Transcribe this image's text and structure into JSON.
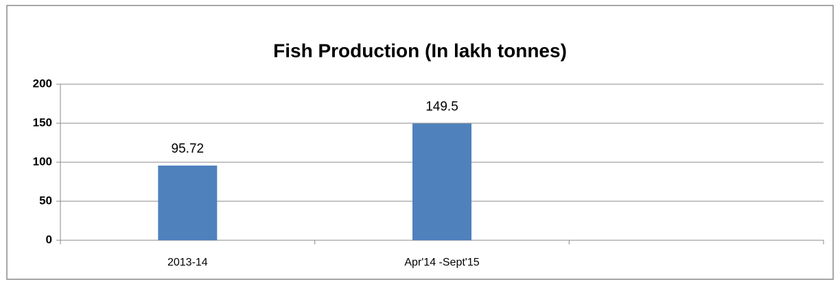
{
  "chart_data": {
    "type": "bar",
    "title": "Fish Production (In lakh tonnes)",
    "categories": [
      "2013-14",
      "Apr'14 -Sept'15",
      null
    ],
    "values": [
      95.72,
      149.5,
      null
    ],
    "color": "#4f81bd",
    "ylim": [
      0,
      200
    ],
    "yticks": [
      0,
      50,
      100,
      150,
      200
    ],
    "grid": true
  }
}
